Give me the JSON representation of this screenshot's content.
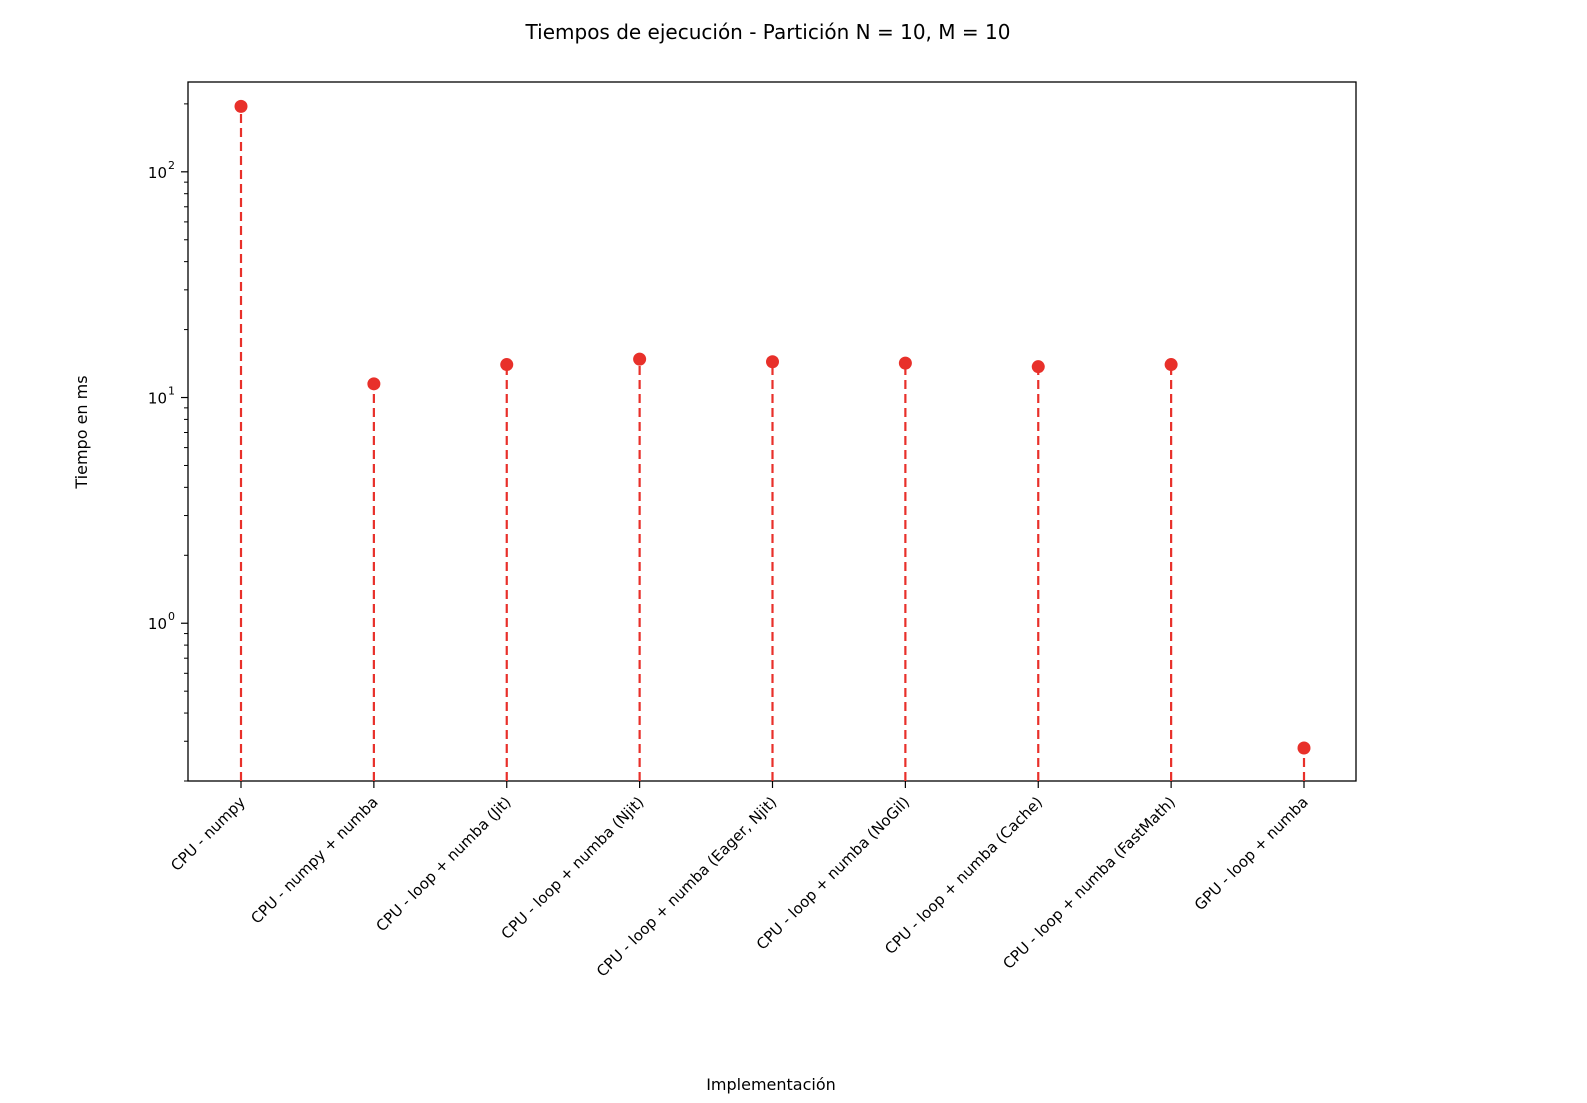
{
  "chart_data": {
    "type": "stem",
    "title": "Tiempos de ejecución - Partición N = 10, M = 10",
    "xlabel": "Implementación",
    "ylabel": "Tiempo en ms",
    "yscale": "log",
    "ylim": [
      0.2,
      250
    ],
    "yticks": [
      {
        "base": "10",
        "exp": "0",
        "value": 1
      },
      {
        "base": "10",
        "exp": "1",
        "value": 10
      },
      {
        "base": "10",
        "exp": "2",
        "value": 100
      }
    ],
    "categories": [
      "CPU - numpy",
      "CPU - numpy + numba",
      "CPU - loop + numba (Jit)",
      "CPU - loop + numba (Njit)",
      "CPU - loop + numba (Eager, Njit)",
      "CPU - loop + numba (NoGil)",
      "CPU - loop + numba (Cache)",
      "CPU - loop + numba (FastMath)",
      "GPU - loop + numba"
    ],
    "values": [
      195,
      11.5,
      14.0,
      14.8,
      14.4,
      14.2,
      13.7,
      14.0,
      0.28
    ],
    "grid": false,
    "line_style": "dashed",
    "color": "#e8302a"
  }
}
